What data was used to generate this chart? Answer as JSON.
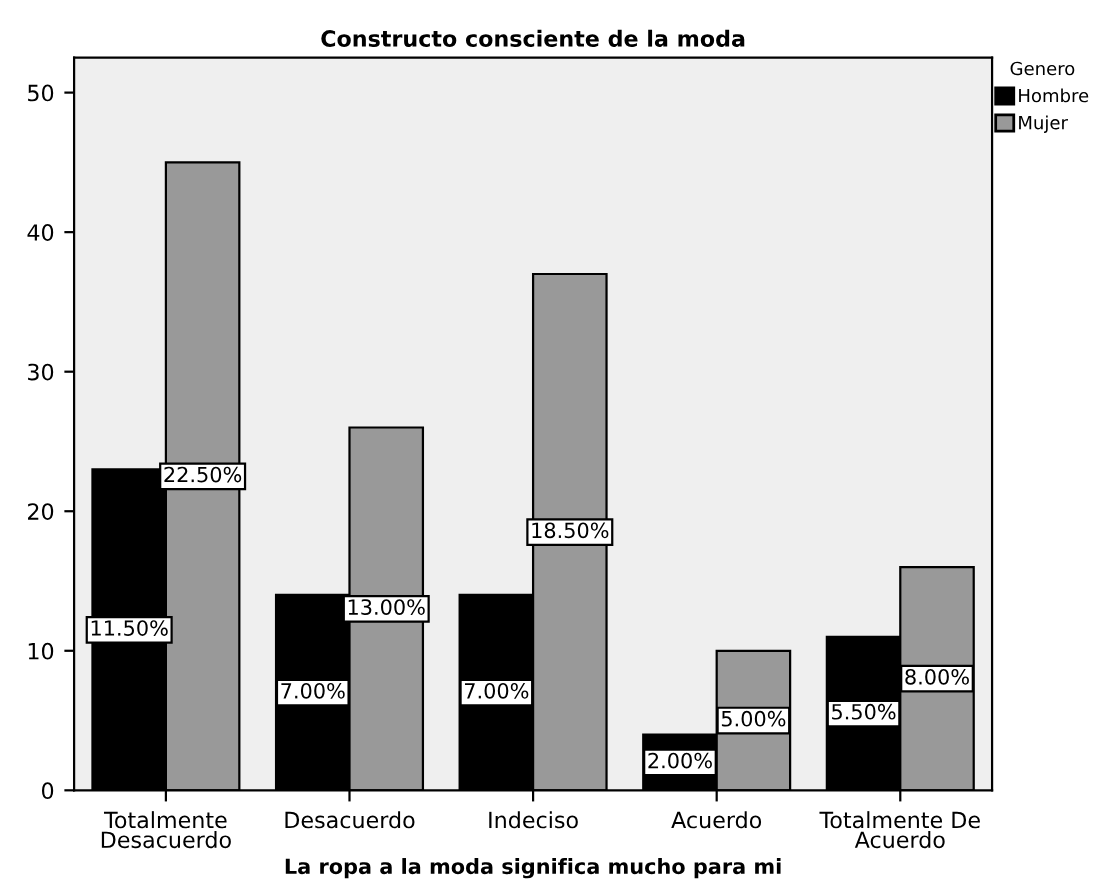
{
  "chart_data": {
    "type": "bar",
    "title": "Constructo consciente de la moda",
    "xlabel": "La ropa a la moda significa mucho para mi",
    "legend_title": "Genero",
    "legend": "top right",
    "categories": [
      "Totalmente\nDesacuerdo",
      "Desacuerdo",
      "Indeciso",
      "Acuerdo",
      "Totalmente De\nAcuerdo"
    ],
    "series": [
      {
        "name": "Hombre",
        "color": "#000000",
        "values": [
          23,
          14,
          14,
          4,
          11
        ]
      },
      {
        "name": "Mujer",
        "color": "#999999",
        "values": [
          45,
          26,
          37,
          10,
          16
        ]
      }
    ],
    "annotations": [
      {
        "text": "11.50%",
        "x": "Totalmente\nDesacuerdo",
        "y": 11.5
      },
      {
        "text": "7.00%",
        "x": "Desacuerdo",
        "y": 7
      },
      {
        "text": "7.00%",
        "x": "Indeciso",
        "y": 7
      },
      {
        "text": "2.00%",
        "x": "Acuerdo",
        "y": 2
      },
      {
        "text": "5.50%",
        "x": "Totalmente De\nAcuerdo",
        "y": 5.5
      },
      {
        "text": "22.50%",
        "x": "Totalmente\nDesacuerdo",
        "y": 22.5
      },
      {
        "text": "13.00%",
        "x": "Desacuerdo",
        "y": 13
      },
      {
        "text": "18.50%",
        "x": "Indeciso",
        "y": 18.5
      },
      {
        "text": "5.00%",
        "x": "Acuerdo",
        "y": 5
      },
      {
        "text": "8.00%",
        "x": "Totalmente De\nAcuerdo",
        "y": 8
      }
    ],
    "ylim": [
      0,
      52.5
    ],
    "yticks": [
      0,
      10,
      20,
      30,
      40,
      50
    ],
    "grid": false
  }
}
